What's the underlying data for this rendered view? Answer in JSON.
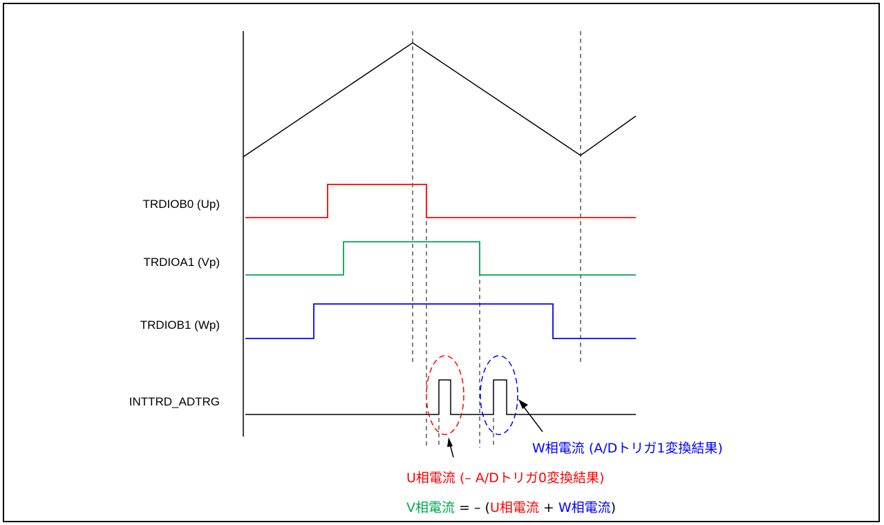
{
  "signals": {
    "up": "TRDIOB0 (Up)",
    "vp": "TRDIOA1 (Vp)",
    "wp": "TRDIOB1 (Wp)",
    "adtrg": "INTTRD_ADTRG"
  },
  "notes": {
    "w_current": "W相電流 (A/Dトリガ1変換結果)",
    "u_current": "U相電流 (– A/Dトリガ0変換結果)",
    "v_eq": {
      "v_part": "V相電流",
      "eq_part": " = – (",
      "u_part": "U相電流",
      "plus_part": " + ",
      "w_part": "W相電流",
      "close_part": ")"
    }
  },
  "colors": {
    "up": "#ff0000",
    "vp": "#00a650",
    "wp": "#0000ff",
    "base": "#000000"
  }
}
